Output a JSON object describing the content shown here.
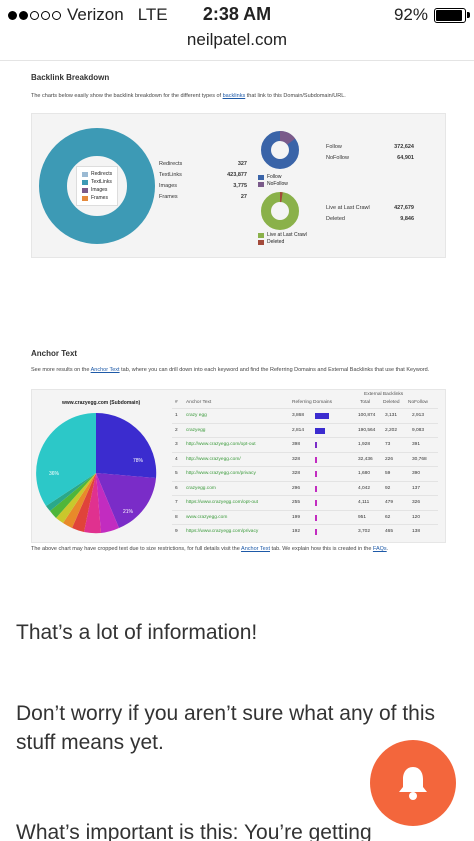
{
  "status_bar": {
    "carrier": "Verizon",
    "network": "LTE",
    "time": "2:38 AM",
    "battery": "92%"
  },
  "browser": {
    "url": "neilpatel.com"
  },
  "backlink": {
    "title": "Backlink Breakdown",
    "desc_pre": "The charts below easily show the backlink breakdown for the different types of ",
    "desc_link": "backlinks",
    "desc_post": " that link to this Domain/Subdomain/URL.",
    "legend": [
      "Redirects",
      "TextLinks",
      "Images",
      "Frames"
    ],
    "types": [
      {
        "label": "Redirects",
        "value": "327"
      },
      {
        "label": "TextLinks",
        "value": "423,877"
      },
      {
        "label": "Images",
        "value": "3,775"
      },
      {
        "label": "Frames",
        "value": "27"
      }
    ],
    "follow_legend": [
      "Follow",
      "NoFollow"
    ],
    "follow_stats": [
      {
        "label": "Follow",
        "value": "372,624"
      },
      {
        "label": "NoFollow",
        "value": "64,901"
      }
    ],
    "crawl_legend": [
      "Live at Last Crawl",
      "Deleted"
    ],
    "crawl_stats": [
      {
        "label": "Live at Last Crawl",
        "value": "427,679"
      },
      {
        "label": "Deleted",
        "value": "9,846"
      }
    ],
    "colors": {
      "textlinks": "#3d9ab5",
      "redirects": "#9bbad3",
      "images": "#7a5a8a",
      "frames": "#e58a3c",
      "follow": "#3a64a8",
      "nofollow": "#7a5a8a",
      "live": "#8ab14a",
      "deleted": "#a34a3a"
    }
  },
  "anchor": {
    "title": "Anchor Text",
    "desc_pre": "See more results on the ",
    "desc_link": "Anchor Text",
    "desc_post": " tab, where you can drill down into each keyword and find the Referring Domains and External Backlinks that use that Keyword.",
    "pie_title": "www.crazyegg.com (Subdomain)",
    "pie_labels": [
      "78%",
      "36%",
      "21%"
    ],
    "external_backlinks": "External Backlinks",
    "columns": [
      "#",
      "Anchor Text",
      "Referring Domains",
      "Total",
      "Deleted",
      "NoFollow"
    ],
    "rows": [
      {
        "n": "1",
        "text": "crazy egg",
        "rd": "3,868",
        "total": "100,874",
        "deleted": "3,131",
        "nofollow": "2,913",
        "share": 1.0
      },
      {
        "n": "2",
        "text": "crazyegg",
        "rd": "2,814",
        "total": "190,564",
        "deleted": "2,202",
        "nofollow": "9,083",
        "share": 0.73
      },
      {
        "n": "3",
        "text": "http://www.crazyegg.com/opt-out",
        "rd": "398",
        "total": "1,928",
        "deleted": "73",
        "nofollow": "391",
        "share": 0.1
      },
      {
        "n": "4",
        "text": "http://www.crazyegg.com/",
        "rd": "328",
        "total": "32,436",
        "deleted": "226",
        "nofollow": "30,768",
        "share": 0.08
      },
      {
        "n": "5",
        "text": "http://www.crazyegg.com/privacy",
        "rd": "328",
        "total": "1,680",
        "deleted": "59",
        "nofollow": "390",
        "share": 0.08
      },
      {
        "n": "6",
        "text": "crazyegg.com",
        "rd": "296",
        "total": "4,042",
        "deleted": "92",
        "nofollow": "137",
        "share": 0.08
      },
      {
        "n": "7",
        "text": "https://www.crazyegg.com/opt-out",
        "rd": "255",
        "total": "4,111",
        "deleted": "479",
        "nofollow": "326",
        "share": 0.07
      },
      {
        "n": "8",
        "text": "www.crazyegg.com",
        "rd": "199",
        "total": "951",
        "deleted": "62",
        "nofollow": "120",
        "share": 0.05
      },
      {
        "n": "9",
        "text": "https://www.crazyegg.com/privacy",
        "rd": "192",
        "total": "3,702",
        "deleted": "465",
        "nofollow": "138",
        "share": 0.05
      }
    ],
    "footer_pre": "The above chart may have cropped text due to size restrictions, for full details visit the ",
    "footer_link1": "Anchor Text",
    "footer_mid": " tab. We explain how this is created in the ",
    "footer_link2": "FAQs",
    "footer_end": "."
  },
  "article": {
    "p1": "That’s a lot of information!",
    "p2": "Don’t worry if you aren’t sure what any of this stuff means yet.",
    "p3": "What’s important is this: You’re getting"
  },
  "fab": {
    "icon": "bell-icon",
    "color": "#f3663c"
  }
}
